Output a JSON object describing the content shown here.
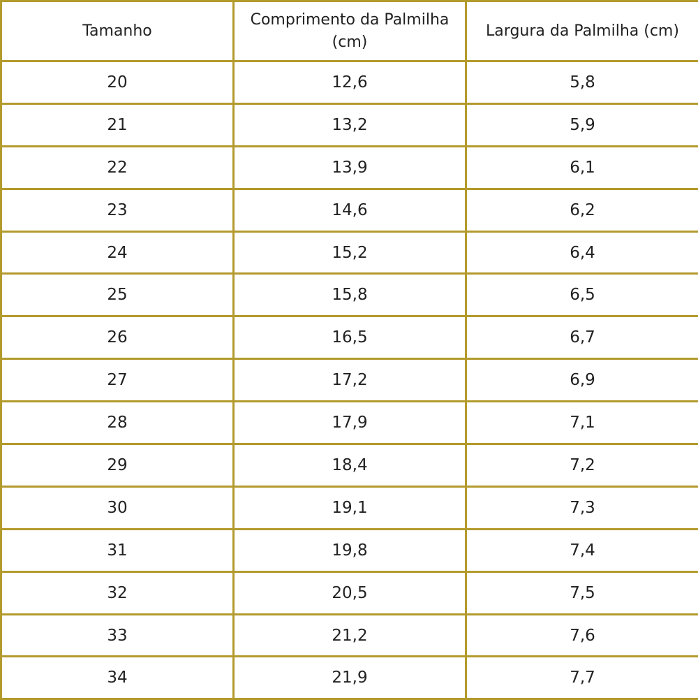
{
  "table": {
    "headers": [
      "Tamanho",
      "Comprimento da Palmilha (cm)",
      "Largura da Palmilha (cm)"
    ],
    "rows": [
      [
        "20",
        "12,6",
        "5,8"
      ],
      [
        "21",
        "13,2",
        "5,9"
      ],
      [
        "22",
        "13,9",
        "6,1"
      ],
      [
        "23",
        "14,6",
        "6,2"
      ],
      [
        "24",
        "15,2",
        "6,4"
      ],
      [
        "25",
        "15,8",
        "6,5"
      ],
      [
        "26",
        "16,5",
        "6,7"
      ],
      [
        "27",
        "17,2",
        "6,9"
      ],
      [
        "28",
        "17,9",
        "7,1"
      ],
      [
        "29",
        "18,4",
        "7,2"
      ],
      [
        "30",
        "19,1",
        "7,3"
      ],
      [
        "31",
        "19,8",
        "7,4"
      ],
      [
        "32",
        "20,5",
        "7,5"
      ],
      [
        "33",
        "21,2",
        "7,6"
      ],
      [
        "34",
        "21,9",
        "7,7"
      ]
    ]
  },
  "colors": {
    "border": "#b39a2c",
    "text": "#222222",
    "background": "#ffffff"
  }
}
